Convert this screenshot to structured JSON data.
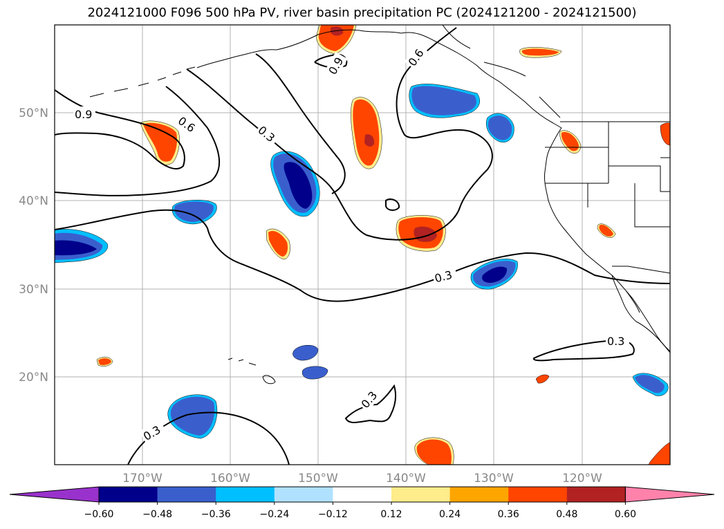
{
  "title": "2024121000 F096 500 hPa PV, river basin precipitation PC (2024121200 - 2024121500)",
  "map": {
    "lon_ticks": [
      "170°W",
      "160°W",
      "150°W",
      "140°W",
      "130°W",
      "120°W"
    ],
    "lat_ticks": [
      "50°N",
      "40°N",
      "30°N",
      "20°N"
    ],
    "lon_range": [
      -180,
      -110
    ],
    "lat_range": [
      10,
      60
    ],
    "contour_labels": [
      "0.9",
      "0.6",
      "0.3",
      "0.9",
      "0.6",
      "0.3",
      "0.3",
      "0.3",
      "0.3"
    ]
  },
  "colorbar": {
    "ticks": [
      "−0.60",
      "−0.48",
      "−0.36",
      "−0.24",
      "−0.12",
      "0.12",
      "0.24",
      "0.36",
      "0.48",
      "0.60"
    ],
    "colors": [
      "#9932cc",
      "#00008b",
      "#3a5fcd",
      "#00bfff",
      "#b0e2ff",
      "#ffffff",
      "#ffec8b",
      "#ffa500",
      "#ff4500",
      "#b22222",
      "#ff82ab"
    ]
  },
  "colors": {
    "dark_blue": "#00008b",
    "mid_blue": "#3a5fcd",
    "cyan": "#00bfff",
    "light_blue": "#b0e2ff",
    "yellow": "#ffec8b",
    "orange": "#ffa500",
    "red_orange": "#ff4500",
    "dark_red": "#b22222"
  }
}
